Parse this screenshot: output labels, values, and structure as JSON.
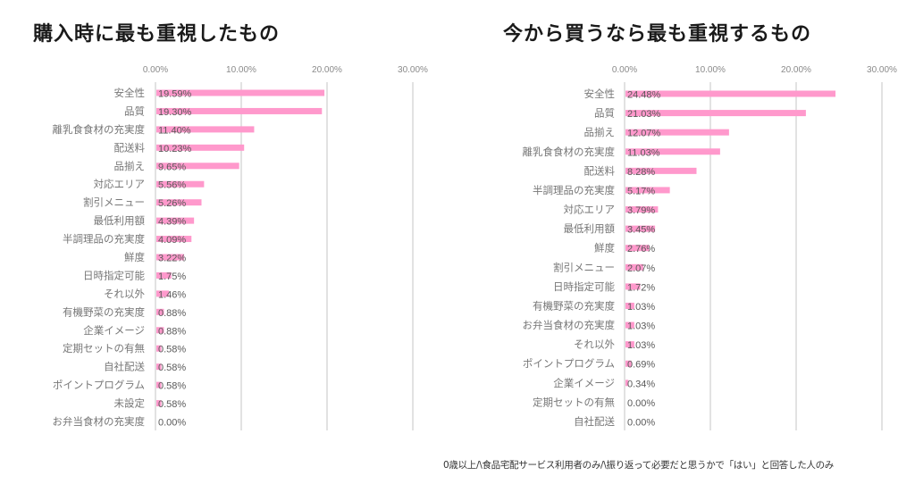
{
  "chart_data": [
    {
      "type": "bar",
      "orientation": "horizontal",
      "title": "購入時に最も重視したもの",
      "xlabel": "",
      "ylabel": "",
      "xlim": [
        0,
        30
      ],
      "x_ticks": [
        "0.00%",
        "10.00%",
        "20.00%",
        "30.00%"
      ],
      "tick_values": [
        0,
        10,
        20,
        30
      ],
      "grid": true,
      "bar_color": "#ff99cc",
      "categories": [
        "安全性",
        "品質",
        "離乳食食材の充実度",
        "配送料",
        "品揃え",
        "対応エリア",
        "割引メニュー",
        "最低利用額",
        "半調理品の充実度",
        "鮮度",
        "日時指定可能",
        "それ以外",
        "有機野菜の充実度",
        "企業イメージ",
        "定期セットの有無",
        "自社配送",
        "ポイントプログラム",
        "未設定",
        "お弁当食材の充実度"
      ],
      "values": [
        19.59,
        19.3,
        11.4,
        10.23,
        9.65,
        5.56,
        5.26,
        4.39,
        4.09,
        3.22,
        1.75,
        1.46,
        0.88,
        0.88,
        0.58,
        0.58,
        0.58,
        0.58,
        0.0
      ],
      "value_labels": [
        "19.59%",
        "19.30%",
        "11.40%",
        "10.23%",
        "9.65%",
        "5.56%",
        "5.26%",
        "4.39%",
        "4.09%",
        "3.22%",
        "1.75%",
        "1.46%",
        "0.88%",
        "0.88%",
        "0.58%",
        "0.58%",
        "0.58%",
        "0.58%",
        "0.00%"
      ]
    },
    {
      "type": "bar",
      "orientation": "horizontal",
      "title": "今から買うなら最も重視するもの",
      "xlabel": "",
      "ylabel": "",
      "xlim": [
        0,
        30
      ],
      "x_ticks": [
        "0.00%",
        "10.00%",
        "20.00%",
        "30.00%"
      ],
      "tick_values": [
        0,
        10,
        20,
        30
      ],
      "grid": true,
      "bar_color": "#ff99cc",
      "categories": [
        "安全性",
        "品質",
        "品揃え",
        "離乳食食材の充実度",
        "配送料",
        "半調理品の充実度",
        "対応エリア",
        "最低利用額",
        "鮮度",
        "割引メニュー",
        "日時指定可能",
        "有機野菜の充実度",
        "お弁当食材の充実度",
        "それ以外",
        "ポイントプログラム",
        "企業イメージ",
        "定期セットの有無",
        "自社配送"
      ],
      "values": [
        24.48,
        21.03,
        12.07,
        11.03,
        8.28,
        5.17,
        3.79,
        3.45,
        2.76,
        2.07,
        1.72,
        1.03,
        1.03,
        1.03,
        0.69,
        0.34,
        0.0,
        0.0
      ],
      "value_labels": [
        "24.48%",
        "21.03%",
        "12.07%",
        "11.03%",
        "8.28%",
        "5.17%",
        "3.79%",
        "3.45%",
        "2.76%",
        "2.07%",
        "1.72%",
        "1.03%",
        "1.03%",
        "1.03%",
        "0.69%",
        "0.34%",
        "0.00%",
        "0.00%"
      ]
    }
  ],
  "footnote": "0歳以上/\\食品宅配サービス利用者のみ/\\振り返って必要だと思うかで「はい」と回答した人のみ"
}
